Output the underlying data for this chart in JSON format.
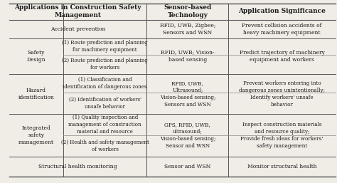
{
  "bg_color": "#f0ece6",
  "text_color": "#1a1a1a",
  "line_color": "#555555",
  "header_row": [
    "Applications in Construction Safety\nManagement",
    "Sensor-based\nTechnology",
    "Application Significance"
  ],
  "col3_items": [
    "RFID, UWB, Zigbee;\nSensors and WSN",
    "RFID, UWB; Vision-\nbased sensing",
    "RFID, UWB,\nUltrasound;\nVision-based sensing;\nSensors and WSN",
    "GPS, RFID, UWB,\nultrasound;\nVision-based sensing;\nSensor and WSN",
    "Sensor and WSN"
  ],
  "col4_items": [
    "Prevent collision accidents of\nheavy machinery equipment",
    "Predict trajectory of machinery\nequipment and workers",
    "Prevent workers entering into\ndangerous zones unintentionally;\nIdentify workers' unsafe\nbehavior",
    "Inspect construction materials\nand resource quality;\nProvide fresh ideas for workers'\nsafety management",
    "Monitor structural health"
  ],
  "font_size": 5.5,
  "header_font_size": 6.5
}
